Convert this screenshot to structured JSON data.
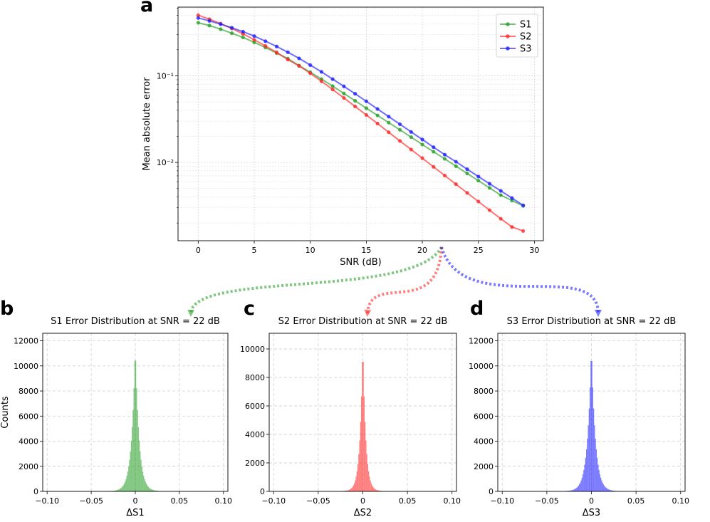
{
  "colors": {
    "s1": "#2ca02c",
    "s2": "#ff2a2a",
    "s3": "#2222ff",
    "grid": "#d5d5d5"
  },
  "panel_letters": {
    "a": "a",
    "b": "b",
    "c": "c",
    "d": "d"
  },
  "chart_data": [
    {
      "type": "line",
      "panel": "a",
      "title": "",
      "xlabel": "SNR (dB)",
      "ylabel": "Mean absolute error",
      "yscale": "log",
      "xlim": [
        -1.8,
        30.8
      ],
      "ylim": [
        0.00125,
        0.62
      ],
      "xticks": [
        0,
        5,
        10,
        15,
        20,
        25,
        30
      ],
      "yticks": [
        {
          "value": 0.1,
          "label": "10⁻¹"
        },
        {
          "value": 0.01,
          "label": "10⁻²"
        }
      ],
      "grid": true,
      "legend": "top-right",
      "x": [
        0,
        1,
        2,
        3,
        4,
        5,
        6,
        7,
        8,
        9,
        10,
        11,
        12,
        13,
        14,
        15,
        16,
        17,
        18,
        19,
        20,
        21,
        22,
        23,
        24,
        25,
        26,
        27,
        28,
        29
      ],
      "series": [
        {
          "name": "S1",
          "color": "#2ca02c",
          "values": [
            0.41,
            0.38,
            0.345,
            0.31,
            0.277,
            0.243,
            0.212,
            0.183,
            0.158,
            0.131,
            0.11,
            0.0915,
            0.076,
            0.0625,
            0.0515,
            0.0423,
            0.0349,
            0.0288,
            0.0238,
            0.0196,
            0.0161,
            0.0133,
            0.011,
            0.00905,
            0.00746,
            0.00616,
            0.00508,
            0.0042,
            0.00363,
            0.00315
          ]
        },
        {
          "name": "S2",
          "color": "#ff2a2a",
          "values": [
            0.5,
            0.45,
            0.4,
            0.352,
            0.305,
            0.26,
            0.221,
            0.186,
            0.154,
            0.13,
            0.107,
            0.0863,
            0.0695,
            0.0555,
            0.0443,
            0.0353,
            0.0281,
            0.0223,
            0.0177,
            0.0141,
            0.0112,
            0.0089,
            0.00706,
            0.00561,
            0.00445,
            0.00354,
            0.00281,
            0.00224,
            0.0018,
            0.00162
          ]
        },
        {
          "name": "S3",
          "color": "#2222ff",
          "values": [
            0.465,
            0.43,
            0.394,
            0.358,
            0.323,
            0.287,
            0.251,
            0.218,
            0.187,
            0.159,
            0.133,
            0.111,
            0.0915,
            0.0755,
            0.0621,
            0.0508,
            0.0414,
            0.0338,
            0.0276,
            0.0225,
            0.0184,
            0.015,
            0.0123,
            0.0102,
            0.00835,
            0.00688,
            0.00568,
            0.0047,
            0.00388,
            0.0032
          ]
        }
      ]
    },
    {
      "type": "histogram",
      "panel": "b",
      "title": "S1 Error Distribution at SNR = 22 dB",
      "xlabel": "ΔS1",
      "ylabel": "Counts",
      "color": "#2ca02c",
      "xlim": [
        -0.105,
        0.105
      ],
      "ylim": [
        0,
        12600
      ],
      "xticks": [
        -0.1,
        -0.05,
        0.0,
        0.05,
        0.1
      ],
      "yticks": [
        0,
        2000,
        4000,
        6000,
        8000,
        10000,
        12000
      ],
      "grid": true,
      "bin_width": 0.001,
      "peak_count": 11700,
      "scale": 0.0042
    },
    {
      "type": "histogram",
      "panel": "c",
      "title": "S2 Error Distribution at SNR = 22 dB",
      "xlabel": "ΔS2",
      "ylabel": "",
      "color": "#ff2a2a",
      "xlim": [
        -0.105,
        0.105
      ],
      "ylim": [
        0,
        11100
      ],
      "xticks": [
        -0.1,
        -0.05,
        0.0,
        0.05,
        0.1
      ],
      "yticks": [
        0,
        2000,
        4000,
        6000,
        8000,
        10000
      ],
      "grid": true,
      "bin_width": 0.001,
      "peak_count": 10600,
      "scale": 0.0032
    },
    {
      "type": "histogram",
      "panel": "d",
      "title": "S3 Error Distribution at SNR = 22 dB",
      "xlabel": "ΔS3",
      "ylabel": "",
      "color": "#2222ff",
      "xlim": [
        -0.105,
        0.105
      ],
      "ylim": [
        0,
        12600
      ],
      "xticks": [
        -0.1,
        -0.05,
        0.0,
        0.05,
        0.1
      ],
      "yticks": [
        0,
        2000,
        4000,
        6000,
        8000,
        10000,
        12000
      ],
      "grid": true,
      "bin_width": 0.001,
      "peak_count": 11600,
      "scale": 0.0044
    }
  ]
}
